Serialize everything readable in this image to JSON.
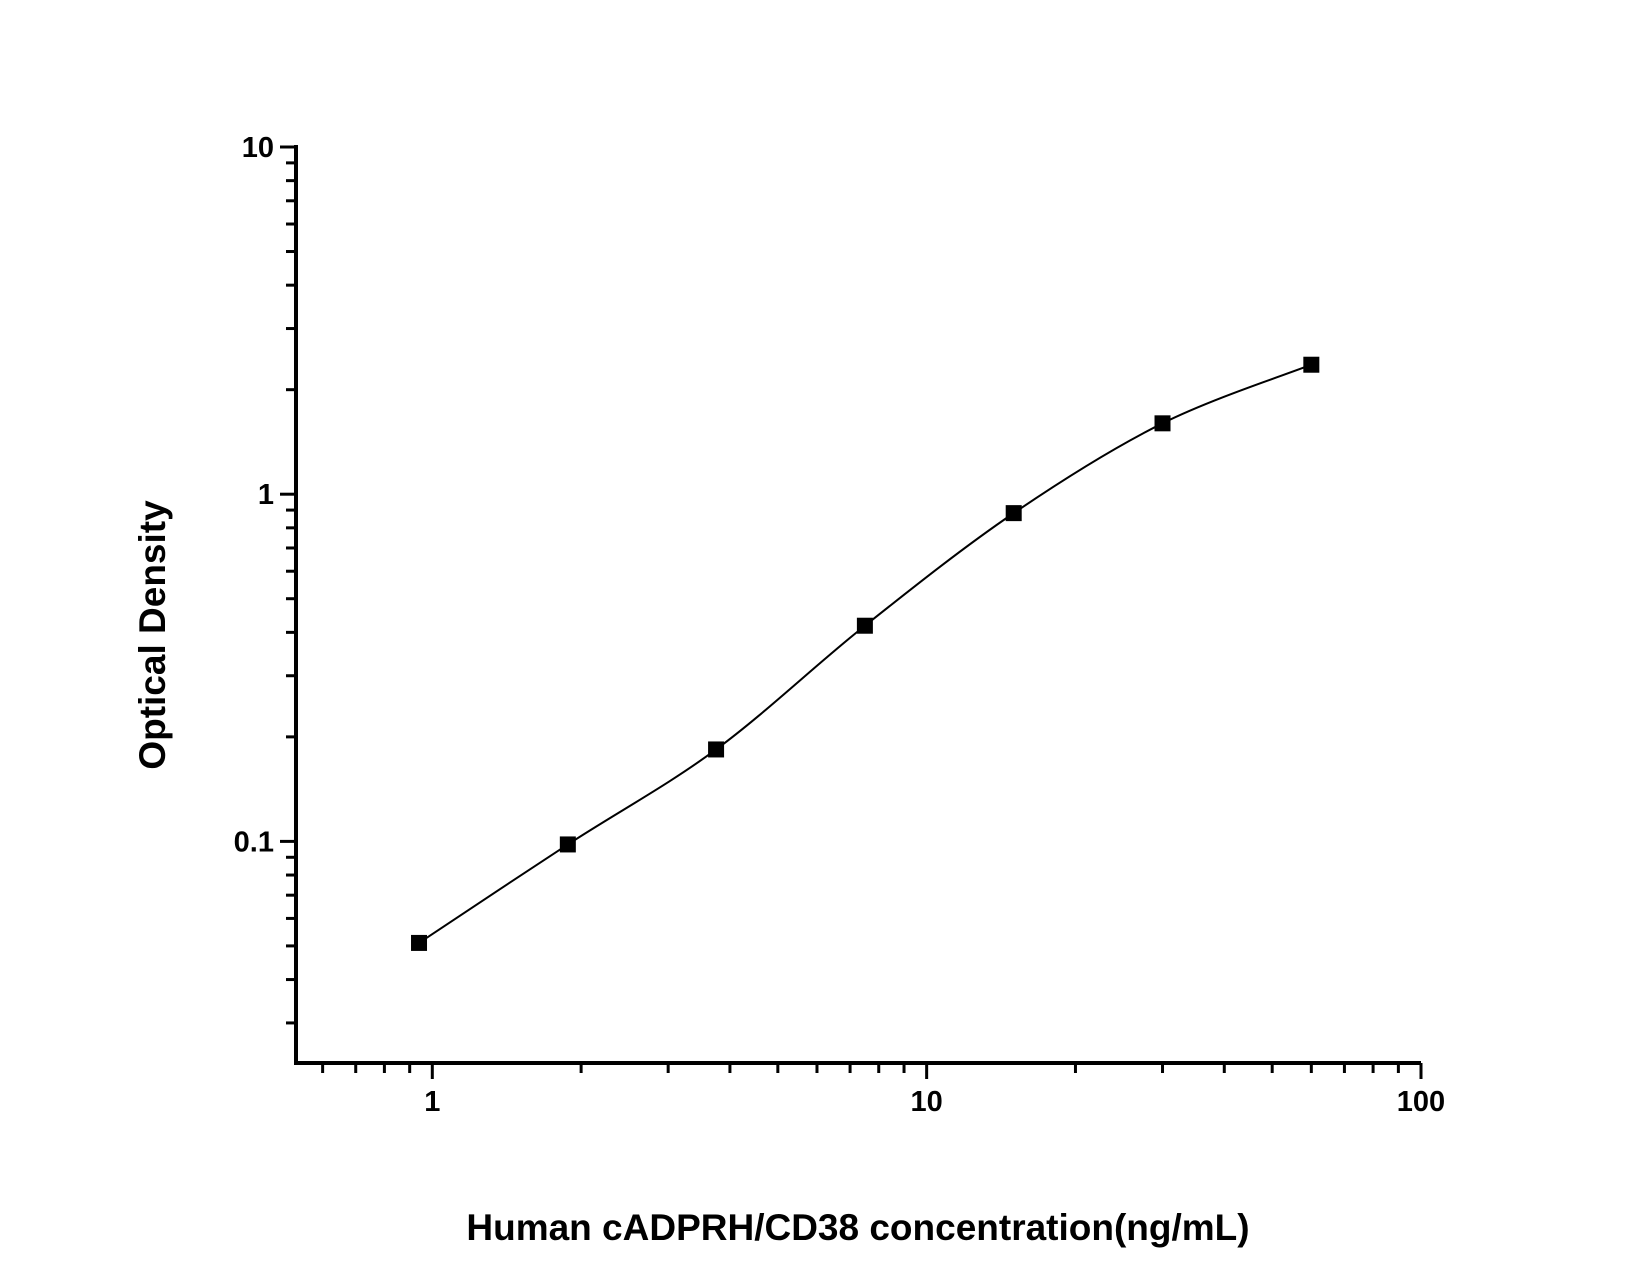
{
  "chart_data": {
    "type": "scatter",
    "title": "",
    "xlabel": "Human cADPRH/CD38 concentration(ng/mL)",
    "ylabel": "Optical Density",
    "x_scale": "log",
    "y_scale": "log",
    "xlim": [
      0.53,
      100
    ],
    "ylim": [
      0.023,
      10
    ],
    "x_ticks": [
      {
        "value": 1,
        "label": "1"
      },
      {
        "value": 10,
        "label": "10"
      },
      {
        "value": 100,
        "label": "100"
      }
    ],
    "y_ticks": [
      {
        "value": 0.1,
        "label": "0.1"
      },
      {
        "value": 1,
        "label": "1"
      },
      {
        "value": 10,
        "label": "10"
      }
    ],
    "grid": false,
    "legend": "none",
    "marker": "square",
    "color": "#000000",
    "fit_curve": true,
    "series": [
      {
        "x": [
          0.94,
          1.88,
          3.75,
          7.5,
          15,
          30,
          60
        ],
        "y": [
          0.051,
          0.098,
          0.184,
          0.418,
          0.882,
          1.6,
          2.36
        ]
      }
    ]
  }
}
